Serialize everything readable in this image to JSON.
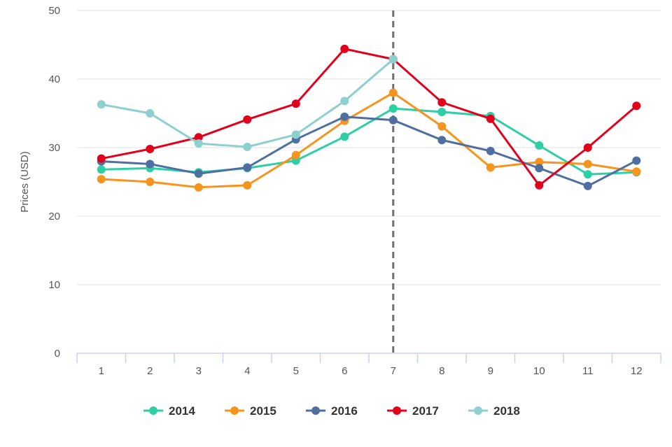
{
  "chart_data": {
    "type": "line",
    "ylabel": "Prices (USD)",
    "xlabel": "",
    "x": [
      1,
      2,
      3,
      4,
      5,
      6,
      7,
      8,
      9,
      10,
      11,
      12
    ],
    "ylim": [
      0,
      50
    ],
    "yticks": [
      0,
      10,
      20,
      30,
      40,
      50
    ],
    "grid": "horizontal",
    "legend_position": "bottom",
    "reference_line": {
      "x": 7,
      "style": "dashed",
      "color": "#707070"
    },
    "series": [
      {
        "name": "2014",
        "color": "#2ecfa5",
        "values": [
          26.8,
          27.0,
          26.4,
          27.0,
          28.1,
          31.6,
          35.7,
          35.2,
          34.6,
          30.3,
          26.1,
          26.4
        ]
      },
      {
        "name": "2015",
        "color": "#f7941d",
        "values": [
          25.4,
          25.0,
          24.2,
          24.5,
          28.9,
          33.9,
          38.0,
          33.1,
          27.1,
          27.9,
          27.6,
          26.5
        ]
      },
      {
        "name": "2016",
        "color": "#4f6fa0",
        "values": [
          28.0,
          27.6,
          26.2,
          27.1,
          31.2,
          34.5,
          34.0,
          31.1,
          29.5,
          27.0,
          24.4,
          28.1
        ]
      },
      {
        "name": "2017",
        "color": "#e3001b",
        "values": [
          28.4,
          29.8,
          31.5,
          34.1,
          36.4,
          44.4,
          42.9,
          36.6,
          34.2,
          24.5,
          30.0,
          36.1
        ]
      },
      {
        "name": "2018",
        "color": "#8ecfd0",
        "values": [
          36.3,
          35.0,
          30.6,
          30.1,
          31.9,
          36.8,
          42.9,
          null,
          null,
          null,
          null,
          null
        ]
      }
    ]
  }
}
